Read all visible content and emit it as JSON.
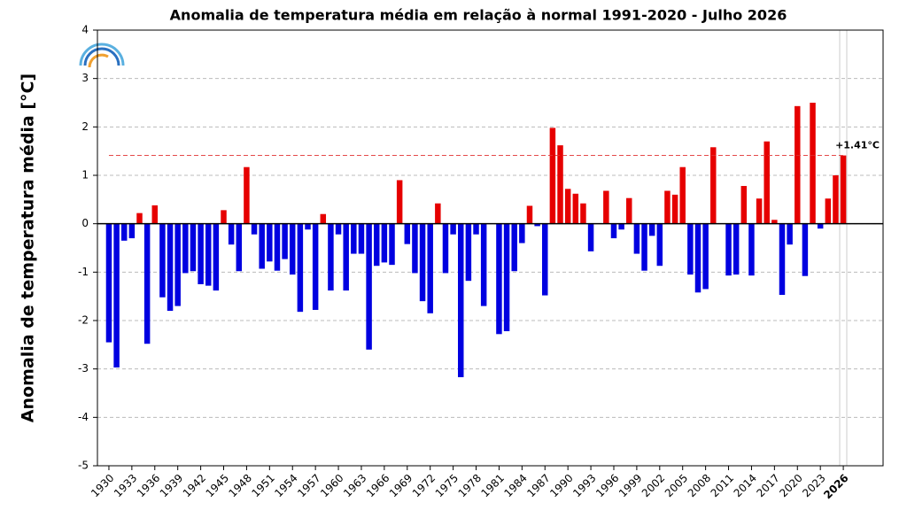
{
  "chart_data": {
    "type": "bar",
    "title": "Anomalia de temperatura média em relação à normal 1991-2020 - Julho 2026",
    "y_label": "Anomalia de temperatura média [°C]",
    "x": [
      1930,
      1931,
      1932,
      1933,
      1934,
      1935,
      1936,
      1937,
      1938,
      1939,
      1940,
      1941,
      1942,
      1943,
      1944,
      1945,
      1946,
      1947,
      1948,
      1949,
      1950,
      1951,
      1952,
      1953,
      1954,
      1955,
      1956,
      1957,
      1958,
      1959,
      1960,
      1961,
      1962,
      1963,
      1964,
      1965,
      1966,
      1967,
      1968,
      1969,
      1970,
      1971,
      1972,
      1973,
      1974,
      1975,
      1976,
      1977,
      1978,
      1979,
      1980,
      1981,
      1982,
      1983,
      1984,
      1985,
      1986,
      1987,
      1988,
      1989,
      1990,
      1991,
      1992,
      1993,
      1994,
      1995,
      1996,
      1997,
      1998,
      1999,
      2000,
      2001,
      2002,
      2003,
      2004,
      2005,
      2006,
      2007,
      2008,
      2009,
      2010,
      2011,
      2012,
      2013,
      2014,
      2015,
      2016,
      2017,
      2018,
      2019,
      2020,
      2021,
      2022,
      2023,
      2024,
      2025,
      2026
    ],
    "values": [
      -2.45,
      -2.97,
      -0.35,
      -0.3,
      0.22,
      -2.48,
      0.38,
      -1.52,
      -1.8,
      -1.7,
      -1.02,
      -0.98,
      -1.25,
      -1.28,
      -1.38,
      0.28,
      -0.43,
      -0.98,
      1.17,
      -0.22,
      -0.93,
      -0.78,
      -0.97,
      -0.73,
      -1.05,
      -1.82,
      -0.12,
      -1.78,
      0.2,
      -1.38,
      -0.22,
      -1.38,
      -0.62,
      -0.62,
      -2.6,
      -0.87,
      -0.8,
      -0.85,
      0.9,
      -0.42,
      -1.02,
      -1.6,
      -1.85,
      0.42,
      -1.02,
      -0.22,
      -3.17,
      -1.18,
      -0.22,
      -1.7,
      null,
      -2.28,
      -2.22,
      -0.98,
      -0.4,
      0.37,
      -0.05,
      -1.48,
      1.98,
      1.62,
      0.72,
      0.62,
      0.42,
      -0.57,
      null,
      0.68,
      -0.3,
      -0.12,
      0.53,
      -0.62,
      -0.97,
      -0.25,
      -0.87,
      0.68,
      0.6,
      1.17,
      -1.05,
      -1.42,
      -1.35,
      1.58,
      null,
      -1.07,
      -1.05,
      0.78,
      -1.07,
      0.52,
      1.7,
      0.08,
      -1.47,
      -0.43,
      2.43,
      -1.08,
      2.5,
      -0.1,
      0.52,
      1.0,
      1.41
    ],
    "positive_color": "#e60000",
    "negative_color": "#0000e0",
    "reference": 1.41,
    "reference_label": "+1.41°C",
    "reference_color": "#e03030",
    "xlim": [
      1928.5,
      2031.2
    ],
    "xticks": [
      1930,
      1933,
      1936,
      1939,
      1942,
      1945,
      1948,
      1951,
      1954,
      1957,
      1960,
      1963,
      1966,
      1969,
      1972,
      1975,
      1978,
      1981,
      1984,
      1987,
      1990,
      1993,
      1996,
      1999,
      2002,
      2005,
      2008,
      2011,
      2014,
      2017,
      2020,
      2023,
      2026
    ],
    "ylim": [
      -5,
      4
    ],
    "yticks": [
      -5,
      -4,
      -3,
      -2,
      -1,
      0,
      1,
      2,
      3,
      4
    ],
    "grid": true
  }
}
